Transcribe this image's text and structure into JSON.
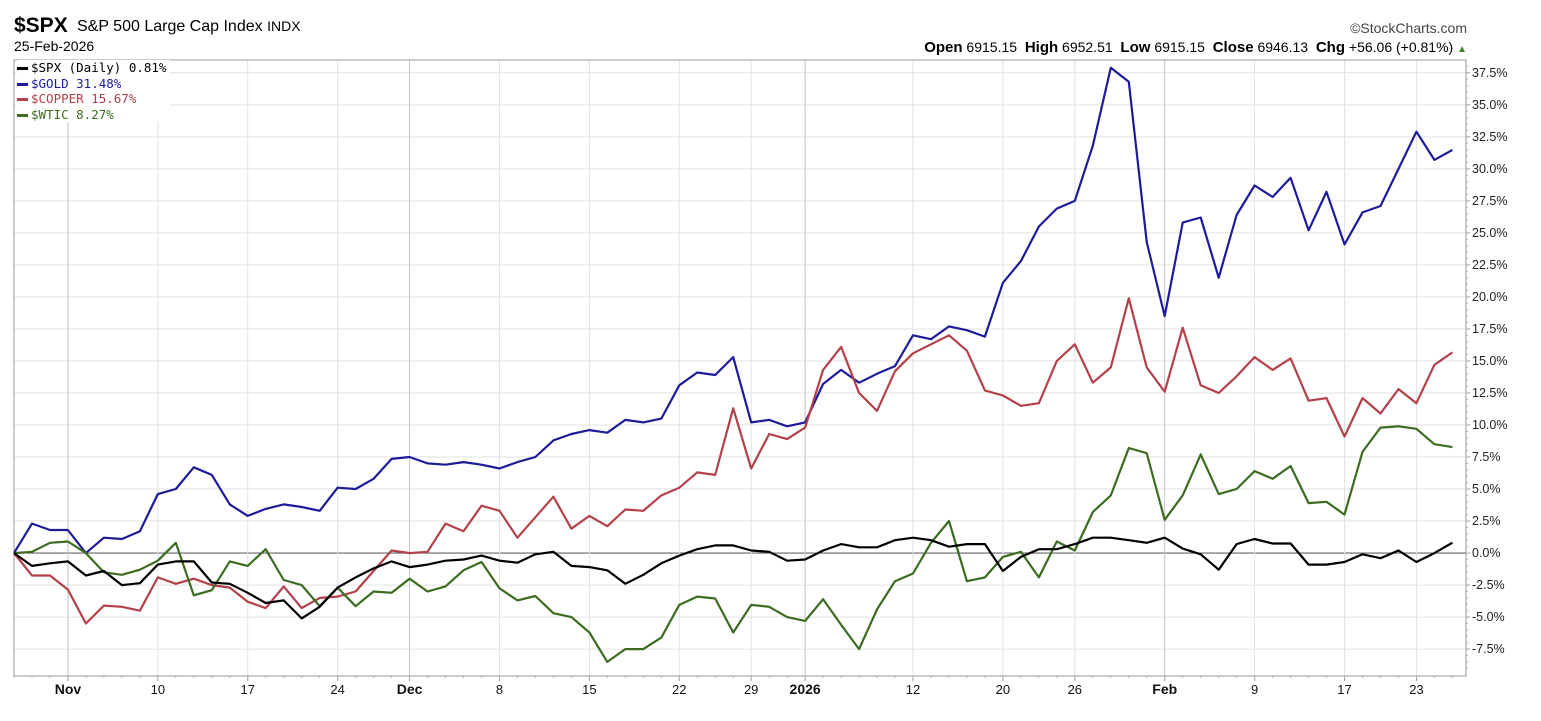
{
  "header": {
    "symbol": "$SPX",
    "description": "S&P 500 Large Cap Index",
    "exchange": "INDX",
    "date": "25-Feb-2026",
    "brand": "©StockCharts.com",
    "open_label": "Open",
    "open": "6915.15",
    "high_label": "High",
    "high": "6952.51",
    "low_label": "Low",
    "low": "6915.15",
    "close_label": "Close",
    "close": "6946.13",
    "chg_label": "Chg",
    "chg": "+56.06 (+0.81%)",
    "chg_icon": "triangle-up-icon"
  },
  "chart_data": {
    "type": "line",
    "title": "",
    "xlabel": "",
    "ylabel": "",
    "ylim": [
      -9.6,
      38.5
    ],
    "grid": true,
    "legend": "top-left",
    "y_axis_side": "right",
    "y_ticks": [
      -7.5,
      -5.0,
      -2.5,
      0.0,
      2.5,
      5.0,
      7.5,
      10.0,
      12.5,
      15.0,
      17.5,
      20.0,
      22.5,
      25.0,
      27.5,
      30.0,
      32.5,
      35.0,
      37.5
    ],
    "y_tick_labels": [
      "-7.5%",
      "-5.0%",
      "-2.5%",
      "0.0%",
      "2.5%",
      "5.0%",
      "7.5%",
      "10.0%",
      "12.5%",
      "15.0%",
      "17.5%",
      "20.0%",
      "22.5%",
      "25.0%",
      "27.5%",
      "30.0%",
      "32.5%",
      "35.0%",
      "37.5%"
    ],
    "x_ticks": [
      {
        "date": "2025-11-03",
        "label": "Nov",
        "major": true
      },
      {
        "date": "2025-11-10",
        "label": "10"
      },
      {
        "date": "2025-11-17",
        "label": "17"
      },
      {
        "date": "2025-11-24",
        "label": "24"
      },
      {
        "date": "2025-12-01",
        "label": "Dec",
        "major": true
      },
      {
        "date": "2025-12-08",
        "label": "8"
      },
      {
        "date": "2025-12-15",
        "label": "15"
      },
      {
        "date": "2025-12-22",
        "label": "22"
      },
      {
        "date": "2025-12-29",
        "label": "29"
      },
      {
        "date": "2026-01-02",
        "label": "2026",
        "major": true
      },
      {
        "date": "2026-01-12",
        "label": "12"
      },
      {
        "date": "2026-01-20",
        "label": "20"
      },
      {
        "date": "2026-01-26",
        "label": "26"
      },
      {
        "date": "2026-02-02",
        "label": "Feb",
        "major": true
      },
      {
        "date": "2026-02-09",
        "label": "9"
      },
      {
        "date": "2026-02-17",
        "label": "17"
      },
      {
        "date": "2026-02-23",
        "label": "23"
      }
    ],
    "x": [
      "2025-10-29",
      "2025-10-30",
      "2025-10-31",
      "2025-11-03",
      "2025-11-04",
      "2025-11-05",
      "2025-11-06",
      "2025-11-07",
      "2025-11-10",
      "2025-11-11",
      "2025-11-12",
      "2025-11-13",
      "2025-11-14",
      "2025-11-17",
      "2025-11-18",
      "2025-11-19",
      "2025-11-20",
      "2025-11-21",
      "2025-11-24",
      "2025-11-25",
      "2025-11-26",
      "2025-11-28",
      "2025-12-01",
      "2025-12-02",
      "2025-12-03",
      "2025-12-04",
      "2025-12-05",
      "2025-12-08",
      "2025-12-09",
      "2025-12-10",
      "2025-12-11",
      "2025-12-12",
      "2025-12-15",
      "2025-12-16",
      "2025-12-17",
      "2025-12-18",
      "2025-12-19",
      "2025-12-22",
      "2025-12-23",
      "2025-12-24",
      "2025-12-26",
      "2025-12-29",
      "2025-12-30",
      "2025-12-31",
      "2026-01-02",
      "2026-01-05",
      "2026-01-06",
      "2026-01-07",
      "2026-01-08",
      "2026-01-09",
      "2026-01-12",
      "2026-01-13",
      "2026-01-14",
      "2026-01-15",
      "2026-01-16",
      "2026-01-20",
      "2026-01-21",
      "2026-01-22",
      "2026-01-23",
      "2026-01-26",
      "2026-01-27",
      "2026-01-28",
      "2026-01-29",
      "2026-01-30",
      "2026-02-02",
      "2026-02-03",
      "2026-02-04",
      "2026-02-05",
      "2026-02-06",
      "2026-02-09",
      "2026-02-10",
      "2026-02-11",
      "2026-02-12",
      "2026-02-13",
      "2026-02-17",
      "2026-02-18",
      "2026-02-19",
      "2026-02-20",
      "2026-02-23",
      "2026-02-24",
      "2026-02-25"
    ],
    "series": [
      {
        "name": "$SPX (Daily) 0.81%",
        "color": "#000000",
        "values": [
          0,
          -1.0,
          -0.8,
          -0.65,
          -1.75,
          -1.4,
          -2.5,
          -2.35,
          -0.9,
          -0.65,
          -0.65,
          -2.3,
          -2.4,
          -3.1,
          -3.9,
          -3.7,
          -5.1,
          -4.2,
          -2.7,
          -1.9,
          -1.2,
          -0.65,
          -1.1,
          -0.9,
          -0.6,
          -0.5,
          -0.2,
          -0.6,
          -0.75,
          -0.1,
          0.1,
          -1.0,
          -1.1,
          -1.35,
          -2.4,
          -1.7,
          -0.8,
          -0.2,
          0.3,
          0.6,
          0.6,
          0.2,
          0.1,
          -0.6,
          -0.5,
          0.2,
          0.7,
          0.45,
          0.45,
          1.0,
          1.2,
          1.0,
          0.5,
          0.7,
          0.7,
          -1.4,
          -0.3,
          0.3,
          0.3,
          0.7,
          1.2,
          1.2,
          1.0,
          0.8,
          1.2,
          0.35,
          -0.1,
          -1.3,
          0.7,
          1.1,
          0.75,
          0.75,
          -0.9,
          -0.9,
          -0.7,
          -0.1,
          -0.4,
          0.2,
          -0.7,
          0.0,
          0.81
        ]
      },
      {
        "name": "$GOLD 31.48%",
        "color": "#1c1c9a",
        "values": [
          0,
          2.3,
          1.8,
          1.8,
          0,
          1.2,
          1.1,
          1.7,
          4.6,
          5.0,
          6.7,
          6.1,
          3.8,
          2.9,
          3.45,
          3.8,
          3.6,
          3.3,
          5.1,
          5.0,
          5.8,
          7.35,
          7.5,
          7.0,
          6.9,
          7.1,
          6.9,
          6.6,
          7.1,
          7.5,
          8.8,
          9.3,
          9.6,
          9.4,
          10.4,
          10.2,
          10.5,
          13.1,
          14.1,
          13.9,
          15.3,
          10.2,
          10.4,
          9.9,
          10.2,
          13.2,
          14.3,
          13.3,
          14.0,
          14.6,
          17.0,
          16.7,
          17.7,
          17.4,
          16.9,
          21.1,
          22.8,
          25.5,
          26.9,
          27.5,
          31.8,
          37.9,
          36.8,
          24.3,
          18.5,
          25.8,
          26.2,
          21.5,
          26.4,
          28.7,
          27.8,
          29.3,
          25.2,
          28.2,
          24.1,
          26.6,
          27.1,
          30.0,
          32.9,
          30.7,
          31.48
        ]
      },
      {
        "name": "$COPPER 15.67%",
        "color": "#b3404a",
        "values": [
          0,
          -1.75,
          -1.75,
          -2.85,
          -5.5,
          -4.1,
          -4.2,
          -4.5,
          -1.9,
          -2.4,
          -2.0,
          -2.5,
          -2.7,
          -3.8,
          -4.3,
          -2.6,
          -4.3,
          -3.5,
          -3.4,
          -3.0,
          -1.4,
          0.2,
          0.0,
          0.1,
          2.3,
          1.7,
          3.7,
          3.3,
          1.2,
          2.8,
          4.4,
          1.9,
          2.9,
          2.1,
          3.4,
          3.3,
          4.5,
          5.1,
          6.3,
          6.1,
          11.3,
          6.6,
          9.3,
          8.9,
          9.8,
          14.3,
          16.1,
          12.5,
          11.1,
          14.2,
          15.6,
          16.3,
          17.0,
          15.8,
          12.7,
          12.3,
          11.5,
          11.7,
          15.0,
          16.3,
          13.3,
          14.5,
          19.9,
          14.5,
          12.6,
          17.6,
          13.1,
          12.5,
          13.8,
          15.3,
          14.3,
          15.2,
          11.9,
          12.1,
          9.1,
          12.1,
          10.9,
          12.8,
          11.7,
          14.7,
          15.67
        ]
      },
      {
        "name": "$WTIC 8.27%",
        "color": "#3b6c20",
        "values": [
          0,
          0.1,
          0.8,
          0.9,
          0,
          -1.5,
          -1.7,
          -1.3,
          -0.6,
          0.8,
          -3.3,
          -2.9,
          -0.65,
          -1.0,
          0.3,
          -2.1,
          -2.5,
          -4.15,
          -2.7,
          -4.15,
          -3.0,
          -3.1,
          -2.0,
          -3.0,
          -2.6,
          -1.35,
          -0.7,
          -2.75,
          -3.7,
          -3.35,
          -4.7,
          -5.0,
          -6.2,
          -8.5,
          -7.5,
          -7.5,
          -6.6,
          -4.05,
          -3.4,
          -3.55,
          -6.2,
          -4.05,
          -4.2,
          -5.0,
          -5.3,
          -3.6,
          -5.6,
          -7.5,
          -4.4,
          -2.2,
          -1.6,
          0.8,
          2.5,
          -2.2,
          -1.9,
          -0.3,
          0.1,
          -1.9,
          0.9,
          0.2,
          3.2,
          4.5,
          8.2,
          7.8,
          2.6,
          4.5,
          7.7,
          4.6,
          5.0,
          6.4,
          5.8,
          6.8,
          3.9,
          4.0,
          3.0,
          7.9,
          9.8,
          9.9,
          9.7,
          8.5,
          8.27
        ]
      }
    ]
  }
}
